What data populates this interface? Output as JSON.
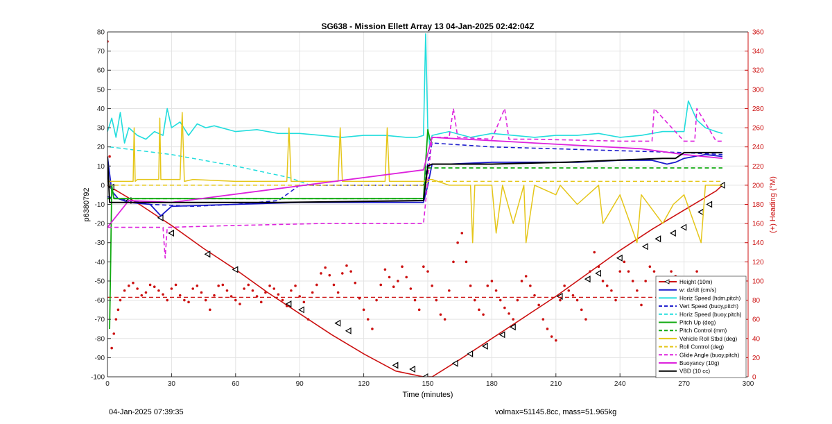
{
  "chart_data": {
    "type": "line",
    "title": "SG638 - Mission Ellett Array 13 04-Jan-2025 02:42:04Z",
    "xlabel": "Time (minutes)",
    "ylabel_left": "p6380792",
    "ylabel_right": "(+) Heading (°M)",
    "xlim": [
      0,
      300
    ],
    "ylim_left": [
      -100,
      80
    ],
    "ylim_right": [
      0,
      360
    ],
    "x_ticks": [
      "0",
      "30",
      "60",
      "90",
      "120",
      "150",
      "180",
      "210",
      "240",
      "270",
      "300"
    ],
    "y_ticks_left": [
      "80",
      "70",
      "60",
      "50",
      "40",
      "30",
      "20",
      "10",
      "0",
      "-10",
      "-20",
      "-30",
      "-40",
      "-50",
      "-60",
      "-70",
      "-80",
      "-90",
      "-100"
    ],
    "y_ticks_right": [
      "360",
      "340",
      "320",
      "300",
      "280",
      "260",
      "240",
      "220",
      "200",
      "180",
      "160",
      "140",
      "120",
      "100",
      "80",
      "60",
      "40",
      "20",
      "0"
    ],
    "grid": true,
    "legend_position": "bottom-right",
    "legend": [
      {
        "label": "Height (10m)",
        "color": "#cc1111",
        "style": "solid",
        "marker": "triangle"
      },
      {
        "label": "w: dz/dt (cm/s)",
        "color": "#1a1acc",
        "style": "solid"
      },
      {
        "label": "Horiz Speed (hdm,pitch)",
        "color": "#22dddd",
        "style": "solid"
      },
      {
        "label": "Vert Speed (buoy,pitch)",
        "color": "#1a1acc",
        "style": "dashed"
      },
      {
        "label": "Horiz Speed (buoy,pitch)",
        "color": "#22dddd",
        "style": "dashed"
      },
      {
        "label": "Pitch Up (deg)",
        "color": "#11aa11",
        "style": "solid"
      },
      {
        "label": "Pitch Control (mm)",
        "color": "#11aa11",
        "style": "dashed"
      },
      {
        "label": "Vehicle Roll Stbd (deg)",
        "color": "#e5c619",
        "style": "solid"
      },
      {
        "label": "Roll Control (deg)",
        "color": "#e5c619",
        "style": "dashed"
      },
      {
        "label": "Glide Angle (buoy,pitch)",
        "color": "#dd22dd",
        "style": "dashed"
      },
      {
        "label": "Buoyancy (10g)",
        "color": "#dd22dd",
        "style": "solid"
      },
      {
        "label": "VBD (10 cc)",
        "color": "#000000",
        "style": "solid"
      }
    ],
    "series": [
      {
        "name": "Height (10m)",
        "color": "#cc1111",
        "dash": "",
        "width": 1.6,
        "x": [
          0,
          15,
          30,
          45,
          60,
          75,
          90,
          105,
          120,
          135,
          148,
          152,
          165,
          180,
          195,
          210,
          225,
          240,
          255,
          270,
          285,
          288
        ],
        "y": [
          0,
          -10,
          -21,
          -33,
          -44,
          -56,
          -67,
          -78,
          -88,
          -97,
          -100,
          -100,
          -91,
          -80,
          -69,
          -58,
          -46,
          -34,
          -23,
          -13,
          -3,
          0
        ]
      },
      {
        "name": "Height markers",
        "color": "#000000",
        "marker_only": true,
        "x": [
          2,
          10,
          25,
          30,
          47,
          60,
          85,
          91,
          108,
          113,
          135,
          143,
          149,
          163,
          170,
          177,
          185,
          190,
          212,
          225,
          230,
          240,
          252,
          258,
          265,
          270,
          278,
          282,
          288
        ],
        "y": [
          -1,
          -8,
          -17,
          -25,
          -36,
          -44,
          -62,
          -65,
          -72,
          -76,
          -94,
          -96,
          -100,
          -93,
          -88,
          -84,
          -78,
          -74,
          -58,
          -49,
          -46,
          -38,
          -32,
          -28,
          -25,
          -22,
          -14,
          -10,
          0
        ]
      },
      {
        "name": "Heading (°M)",
        "color": "#cc1111",
        "dash": "",
        "scatter": true,
        "axis": "right",
        "x": [
          0,
          1,
          2,
          3,
          4,
          5,
          6,
          8,
          10,
          12,
          14,
          16,
          18,
          20,
          22,
          24,
          26,
          28,
          30,
          32,
          34,
          36,
          38,
          40,
          42,
          44,
          46,
          48,
          50,
          52,
          54,
          56,
          58,
          60,
          62,
          64,
          66,
          68,
          70,
          72,
          74,
          76,
          78,
          80,
          82,
          84,
          86,
          88,
          90,
          92,
          94,
          96,
          98,
          100,
          102,
          104,
          106,
          108,
          110,
          112,
          114,
          116,
          118,
          120,
          122,
          124,
          126,
          128,
          130,
          132,
          134,
          136,
          138,
          140,
          142,
          144,
          146,
          148,
          150,
          152,
          154,
          156,
          158,
          160,
          162,
          164,
          166,
          168,
          170,
          172,
          174,
          176,
          178,
          180,
          182,
          184,
          186,
          188,
          190,
          192,
          194,
          196,
          198,
          200,
          202,
          204,
          206,
          208,
          210,
          212,
          214,
          216,
          218,
          220,
          222,
          224,
          226,
          228,
          230,
          232,
          234,
          236,
          238,
          240,
          242,
          244,
          246,
          248,
          250,
          252,
          254,
          256,
          258,
          260,
          262,
          264,
          266,
          268,
          270,
          272,
          274,
          276,
          278,
          280,
          282,
          284,
          286
        ],
        "y": [
          350,
          230,
          30,
          45,
          60,
          70,
          80,
          90,
          95,
          98,
          92,
          85,
          88,
          96,
          94,
          90,
          86,
          80,
          92,
          96,
          85,
          80,
          78,
          92,
          95,
          88,
          80,
          70,
          85,
          95,
          96,
          90,
          84,
          80,
          76,
          92,
          96,
          90,
          84,
          78,
          88,
          95,
          92,
          86,
          80,
          74,
          90,
          95,
          84,
          78,
          60,
          88,
          96,
          108,
          114,
          106,
          96,
          88,
          108,
          116,
          110,
          98,
          82,
          70,
          60,
          50,
          80,
          96,
          112,
          104,
          94,
          100,
          115,
          104,
          92,
          80,
          70,
          115,
          110,
          95,
          80,
          65,
          60,
          90,
          120,
          140,
          150,
          120,
          95,
          80,
          70,
          65,
          95,
          100,
          90,
          80,
          72,
          66,
          60,
          80,
          100,
          105,
          95,
          85,
          75,
          60,
          50,
          42,
          38,
          80,
          95,
          90,
          85,
          80,
          70,
          60,
          110,
          130,
          115,
          100,
          95,
          90,
          80,
          110,
          120,
          110,
          100,
          90,
          75,
          100,
          115,
          110,
          100,
          95,
          90,
          110,
          105,
          92,
          86,
          80,
          90,
          110,
          100,
          80,
          70,
          65,
          100
        ]
      },
      {
        "name": "Heading mean",
        "color": "#cc1111",
        "dash": "6,4",
        "width": 1.4,
        "axis": "right",
        "x": [
          0,
          288
        ],
        "y": [
          83,
          83
        ]
      },
      {
        "name": "w: dz/dt (cm/s)",
        "color": "#1a1acc",
        "dash": "",
        "width": 1.8,
        "x": [
          0,
          2,
          5,
          10,
          20,
          25,
          30,
          60,
          90,
          120,
          148,
          150,
          152,
          160,
          180,
          200,
          220,
          240,
          255,
          262,
          266,
          270,
          280,
          288
        ],
        "y": [
          15,
          -3,
          -7,
          -9,
          -10,
          -16,
          -11,
          -10,
          -9,
          -9,
          -9,
          0,
          11,
          11,
          12,
          12,
          12,
          13,
          13,
          11,
          12,
          14,
          16,
          15
        ]
      },
      {
        "name": "Horiz Speed (hdm,pitch)",
        "color": "#22dddd",
        "dash": "",
        "width": 1.6,
        "x": [
          0,
          2,
          4,
          6,
          8,
          10,
          14,
          18,
          22,
          26,
          28,
          30,
          34,
          38,
          42,
          46,
          50,
          60,
          70,
          80,
          90,
          100,
          110,
          120,
          130,
          140,
          145,
          148,
          149,
          150,
          151,
          152,
          160,
          170,
          180,
          190,
          200,
          210,
          220,
          230,
          240,
          250,
          260,
          270,
          272,
          276,
          280,
          285,
          288
        ],
        "y": [
          28,
          35,
          25,
          38,
          22,
          30,
          26,
          24,
          28,
          26,
          40,
          30,
          33,
          26,
          32,
          30,
          31,
          28,
          29,
          27,
          27,
          26,
          25,
          26,
          26,
          25,
          25,
          26,
          79,
          30,
          20,
          26,
          28,
          25,
          27,
          26,
          25,
          26,
          26,
          27,
          25,
          26,
          28,
          28,
          44,
          34,
          30,
          28,
          27
        ]
      },
      {
        "name": "Horiz Speed (buoy,pitch)",
        "color": "#22dddd",
        "dash": "6,4",
        "width": 1.5,
        "x": [
          1,
          30,
          60,
          85,
          95
        ],
        "y": [
          20,
          16,
          10,
          4,
          0
        ]
      },
      {
        "name": "Vert Speed (buoy,pitch)",
        "color": "#1a1acc",
        "dash": "6,4",
        "width": 1.6,
        "x": [
          0,
          20,
          40,
          60,
          80,
          90,
          110,
          130,
          148,
          152,
          180,
          210,
          240,
          270,
          288
        ],
        "y": [
          -6,
          -10,
          -11,
          -10,
          -8,
          0,
          0,
          0,
          0,
          22,
          20,
          19,
          18,
          17,
          16
        ]
      },
      {
        "name": "Pitch Up (deg)",
        "color": "#11aa11",
        "dash": "",
        "width": 1.8,
        "x": [
          1,
          1.5,
          2,
          3,
          5,
          148,
          149,
          150,
          151,
          152
        ],
        "y": [
          -75,
          -40,
          0,
          -7,
          -7,
          -7,
          12,
          29,
          24,
          22
        ]
      },
      {
        "name": "Pitch Control (mm)",
        "color": "#11aa11",
        "dash": "6,4",
        "width": 1.8,
        "x": [
          0,
          148,
          150,
          180,
          220,
          260,
          288
        ],
        "y": [
          -7,
          -7,
          9,
          9,
          9,
          9,
          9
        ]
      },
      {
        "name": "Vehicle Roll Stbd (deg)",
        "color": "#e5c619",
        "dash": "",
        "width": 1.5,
        "x": [
          0,
          12,
          12.5,
          13,
          14,
          24,
          24.5,
          25,
          30,
          34,
          35,
          36,
          40,
          60,
          84,
          85,
          86,
          108,
          109,
          110,
          130,
          131,
          132,
          148,
          150,
          152,
          160,
          170,
          171,
          172,
          180,
          182,
          185,
          190,
          195,
          196,
          200,
          210,
          212,
          220,
          230,
          232,
          240,
          248,
          250,
          260,
          265,
          270,
          278,
          280,
          288
        ],
        "y": [
          2,
          2,
          30,
          2,
          3,
          3,
          35,
          3,
          3,
          3,
          38,
          2,
          3,
          2,
          2,
          30,
          2,
          2,
          30,
          2,
          2,
          30,
          2,
          2,
          3,
          3,
          0,
          0,
          -30,
          0,
          0,
          -25,
          0,
          -20,
          0,
          -30,
          0,
          -5,
          0,
          -10,
          0,
          -20,
          -5,
          -30,
          -5,
          -20,
          -10,
          -5,
          -30,
          0,
          0
        ]
      },
      {
        "name": "Roll Control (deg)",
        "color": "#e5c619",
        "dash": "6,4",
        "width": 1.5,
        "x": [
          0,
          148,
          150,
          288
        ],
        "y": [
          0,
          0,
          2,
          2
        ]
      },
      {
        "name": "Glide Angle (buoy,pitch)",
        "color": "#dd22dd",
        "dash": "6,4",
        "width": 1.6,
        "x": [
          0,
          20,
          26,
          27,
          28,
          60,
          100,
          130,
          148,
          152,
          160,
          162,
          164,
          180,
          186,
          188,
          200,
          240,
          255,
          256,
          270,
          275,
          276,
          285,
          288
        ],
        "y": [
          -22,
          -22,
          -22,
          -38,
          -22,
          -21,
          -20,
          -20,
          -20,
          25,
          25,
          40,
          25,
          24,
          40,
          24,
          24,
          23,
          23,
          40,
          23,
          23,
          40,
          23,
          23
        ]
      },
      {
        "name": "Buoyancy (10g)",
        "color": "#dd22dd",
        "dash": "",
        "width": 1.8,
        "x": [
          0,
          10,
          30,
          148,
          152,
          200,
          250,
          270,
          288
        ],
        "y": [
          -22,
          -8,
          -9,
          8,
          25,
          22,
          19,
          16,
          14
        ]
      },
      {
        "name": "VBD (10 cc)",
        "color": "#000000",
        "dash": "",
        "width": 2.0,
        "x": [
          0,
          1,
          2,
          40,
          80,
          148,
          150,
          152,
          180,
          215,
          260,
          266,
          270,
          288
        ],
        "y": [
          15,
          -9,
          -9,
          -9,
          -9,
          -8,
          10,
          11,
          11,
          12,
          14,
          14,
          17,
          17
        ]
      }
    ]
  },
  "footer": {
    "timestamp": "04-Jan-2025 07:39:35",
    "summary": "volmax=51145.8cc, mass=51.965kg"
  }
}
